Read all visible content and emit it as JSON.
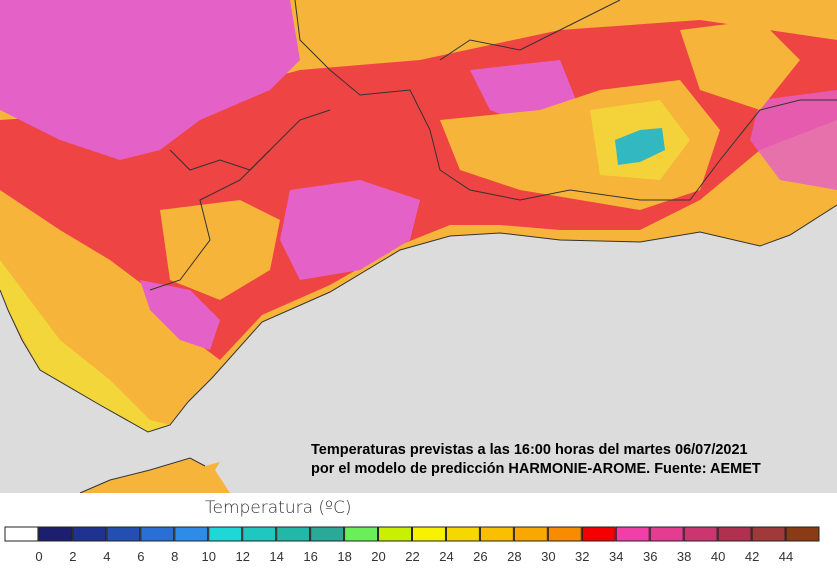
{
  "caption": {
    "line1": "Temperaturas previstas a las 16:00 horas del martes 06/07/2021",
    "line2": "por el modelo de predicción HARMONIE-AROME. Fuente: AEMET"
  },
  "legend": {
    "title": "Temperatura (ºC)",
    "ticks": [
      0,
      2,
      4,
      6,
      8,
      10,
      12,
      14,
      16,
      18,
      20,
      22,
      24,
      26,
      28,
      30,
      32,
      34,
      36,
      38,
      40,
      42,
      44
    ],
    "colors": [
      "#ffffff",
      "#1b1f6e",
      "#1f3290",
      "#2350b0",
      "#2a6fd6",
      "#2e8ce8",
      "#1ed8d8",
      "#1ec8c0",
      "#22b8a8",
      "#2aa898",
      "#6aee5a",
      "#c8f000",
      "#f8f200",
      "#f6d800",
      "#f8c000",
      "#f8a800",
      "#f88c00",
      "#f40000",
      "#f040a8",
      "#e43c90",
      "#cc3670",
      "#b03050",
      "#a03a3a",
      "#8a3a14"
    ]
  }
}
